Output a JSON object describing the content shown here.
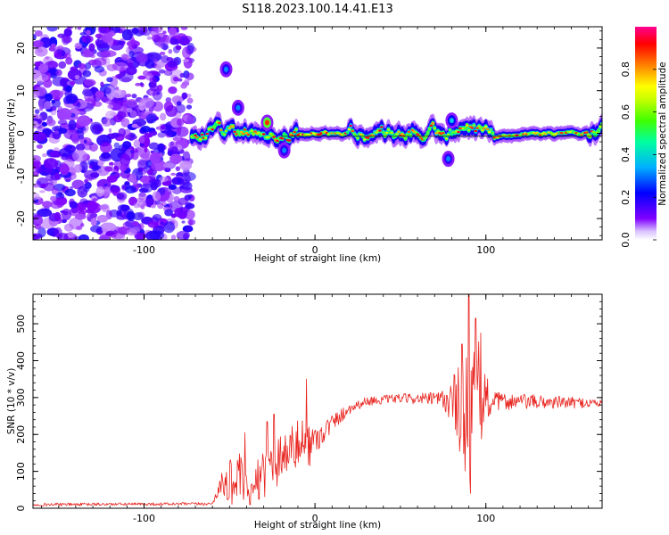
{
  "title": "S118.2023.100.14.41.E13",
  "chart_data": [
    {
      "type": "heatmap",
      "xlabel": "Height of straight line (km)",
      "ylabel": "Frequency (Hz)",
      "xlim": [
        -165,
        168
      ],
      "ylim": [
        -25,
        25
      ],
      "xticks": [
        -100,
        0,
        100
      ],
      "xtick_labels": [
        "-100",
        "0",
        "100"
      ],
      "yticks": [
        -20,
        -10,
        0,
        10,
        20
      ],
      "ytick_labels": [
        "-20",
        "-10",
        "0",
        "10",
        "20"
      ],
      "colorbar": {
        "label": "Normalized spectral amplitude",
        "range": [
          0,
          1
        ],
        "ticks": [
          0.0,
          0.2,
          0.4,
          0.6,
          0.8
        ],
        "tick_labels": [
          "0.0",
          "0.2",
          "0.4",
          "0.6",
          "0.8"
        ],
        "colormap": [
          "#ffffff",
          "#7f00ff",
          "#0000ff",
          "#00c0ff",
          "#00ff80",
          "#80ff00",
          "#ffff00",
          "#ff8000",
          "#ff0000",
          "#ff0080"
        ]
      },
      "regions": {
        "noise_x_range": [
          -165,
          -72
        ],
        "noise_level": 0.15,
        "signal_x_range": [
          -72,
          168
        ],
        "signal_frequency_hz": 0,
        "tone_frequency_hz": -0.7,
        "blobs": [
          {
            "x": -52,
            "f": 15,
            "amp": 0.3
          },
          {
            "x": -45,
            "f": 6,
            "amp": 0.3
          },
          {
            "x": -28,
            "f": 2.5,
            "amp": 0.85
          },
          {
            "x": -18,
            "f": -4,
            "amp": 0.3
          },
          {
            "x": 78,
            "f": -6,
            "amp": 0.3
          },
          {
            "x": 80,
            "f": 3,
            "amp": 0.35
          }
        ]
      },
      "grid": false
    },
    {
      "type": "line",
      "xlabel": "Height of straight line (km)",
      "ylabel": "SNR (10 * v/v)",
      "xlim": [
        -165,
        168
      ],
      "ylim": [
        0,
        580
      ],
      "xticks": [
        -100,
        0,
        100
      ],
      "xtick_labels": [
        "-100",
        "0",
        "100"
      ],
      "yticks": [
        0,
        100,
        200,
        300,
        400,
        500
      ],
      "ytick_labels": [
        "0",
        "100",
        "200",
        "300",
        "400",
        "500"
      ],
      "color": "#e8231e",
      "series_profile": [
        {
          "x": -165,
          "y": 10,
          "noise": 4
        },
        {
          "x": -60,
          "y": 12,
          "noise": 4
        },
        {
          "x": -56,
          "y": 60,
          "noise": 25
        },
        {
          "x": -50,
          "y": 70,
          "noise": 60
        },
        {
          "x": -44,
          "y": 80,
          "noise": 70
        },
        {
          "x": -38,
          "y": 30,
          "noise": 25
        },
        {
          "x": -30,
          "y": 110,
          "noise": 80
        },
        {
          "x": -24,
          "y": 130,
          "noise": 90
        },
        {
          "x": -18,
          "y": 150,
          "noise": 60
        },
        {
          "x": -10,
          "y": 170,
          "noise": 70
        },
        {
          "x": -5,
          "y": 170,
          "noise": 80
        },
        {
          "x": 0,
          "y": 185,
          "noise": 40
        },
        {
          "x": 10,
          "y": 230,
          "noise": 25
        },
        {
          "x": 20,
          "y": 270,
          "noise": 15
        },
        {
          "x": 30,
          "y": 290,
          "noise": 12
        },
        {
          "x": 50,
          "y": 298,
          "noise": 12
        },
        {
          "x": 70,
          "y": 296,
          "noise": 18
        },
        {
          "x": 78,
          "y": 290,
          "noise": 40
        },
        {
          "x": 84,
          "y": 270,
          "noise": 130
        },
        {
          "x": 90,
          "y": 290,
          "noise": 220
        },
        {
          "x": 96,
          "y": 300,
          "noise": 150
        },
        {
          "x": 104,
          "y": 290,
          "noise": 25
        },
        {
          "x": 168,
          "y": 285,
          "noise": 12
        }
      ],
      "spikes": [
        {
          "x": -41,
          "y": 205
        },
        {
          "x": -28,
          "y": 235
        },
        {
          "x": -24,
          "y": 255
        },
        {
          "x": -5,
          "y": 350
        },
        {
          "x": 86,
          "y": 445
        },
        {
          "x": 90,
          "y": 580
        },
        {
          "x": 91,
          "y": 40
        },
        {
          "x": 94,
          "y": 515
        },
        {
          "x": 97,
          "y": 475
        }
      ],
      "grid": false
    }
  ]
}
